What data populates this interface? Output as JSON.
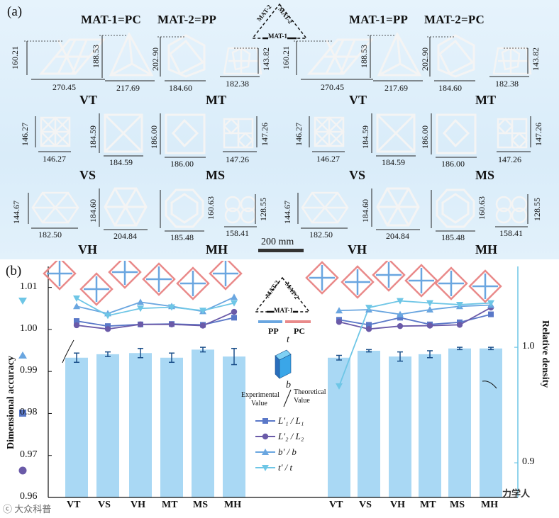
{
  "panel_a": {
    "label": "(a)",
    "headers": [
      "MAT-1=PC",
      "MAT-2=PP",
      "MAT-1=PP",
      "MAT-2=PC"
    ],
    "triangle": {
      "top_left": "MAT-2",
      "top_right": "MAT-2",
      "bottom": "MAT-1"
    },
    "scale_bar": "200 mm",
    "rows": [
      {
        "left_code": "VT",
        "right_code": "MT",
        "dims": [
          {
            "v": "160.21",
            "h": "270.45"
          },
          {
            "v": "188.53",
            "h": "217.69"
          },
          {
            "v": "202.90",
            "h": "184.60"
          },
          {
            "v": "143.82",
            "h": "182.38"
          }
        ]
      },
      {
        "left_code": "VS",
        "right_code": "MS",
        "dims": [
          {
            "v": "146.27",
            "h": "146.27"
          },
          {
            "v": "184.59",
            "h": "184.59"
          },
          {
            "v": "186.00",
            "h": "186.00"
          },
          {
            "v": "147.26",
            "h": "147.26"
          }
        ]
      },
      {
        "left_code": "VH",
        "right_code": "MH",
        "dims": [
          {
            "v": "144.67",
            "h": "182.50"
          },
          {
            "v": "184.60",
            "h": "204.84"
          },
          {
            "v": "160.63",
            "h": "185.48"
          },
          {
            "v": "128.55",
            "h": "158.41"
          }
        ]
      }
    ]
  },
  "panel_b": {
    "label": "(b)",
    "ylabel_left": "Dimensional accuracy",
    "ylabel_right": "Relative density",
    "left_ticks": [
      "1.01",
      "1.00",
      "0.99",
      "0.98",
      "0.97",
      "0.96"
    ],
    "right_ticks": [
      "1.0",
      "0.9"
    ],
    "legend_pp": "PP",
    "legend_pc": "PC",
    "triangle": {
      "top_left": "MAT-2",
      "top_right": "MAT-2",
      "bottom": "MAT-1"
    },
    "cube_t": "t",
    "cube_b": "b",
    "ratio_num_left": "Experimental",
    "ratio_den_left": "Value",
    "ratio_num_right": "Theoretical",
    "ratio_den_right": "Value",
    "legend": [
      {
        "label": "L'₁ / L₁",
        "marker": "square",
        "color": "#5a78c8"
      },
      {
        "label": "L'₂ / L₂",
        "marker": "circle",
        "color": "#6a5aa8"
      },
      {
        "label": "b' / b",
        "marker": "triangle-up",
        "color": "#6aa6e0"
      },
      {
        "label": "t' / t",
        "marker": "triangle-down",
        "color": "#6ec6e6"
      }
    ],
    "watermark_left": "ⓒ 大众科普",
    "watermark_right": "力学人"
  },
  "chart_data": {
    "type": "bar",
    "title": "",
    "xlabel": "",
    "ylabel": "Dimensional accuracy",
    "ylim": [
      0.96,
      1.015
    ],
    "y2label": "Relative density",
    "y2lim": [
      0.87,
      1.07
    ],
    "groups": [
      {
        "name": "MAT-1=PC, MAT-2=PP",
        "categories": [
          "VT",
          "VS",
          "VH",
          "MT",
          "MS",
          "MH"
        ],
        "bars_relative_density": [
          0.991,
          0.994,
          0.995,
          0.991,
          0.998,
          0.992
        ],
        "bar_errors": [
          0.004,
          0.002,
          0.004,
          0.004,
          0.002,
          0.007
        ],
        "series": [
          {
            "name": "L'1/L1",
            "values": [
              1.002,
              1.0008,
              1.0012,
              1.0013,
              1.0011,
              1.0028
            ]
          },
          {
            "name": "L'2/L2",
            "values": [
              1.001,
              1.0001,
              1.0012,
              1.0012,
              1.0009,
              1.0042
            ]
          },
          {
            "name": "b'/b",
            "values": [
              1.0055,
              1.0038,
              1.0065,
              1.0055,
              1.0043,
              1.0077
            ]
          },
          {
            "name": "t'/t",
            "values": [
              1.0074,
              1.0033,
              1.005,
              1.0053,
              1.0045,
              1.0063
            ]
          }
        ]
      },
      {
        "name": "MAT-1=PP, MAT-2=PC",
        "categories": [
          "VT",
          "VS",
          "VH",
          "MT",
          "MS",
          "MH"
        ],
        "bars_relative_density": [
          0.991,
          0.997,
          0.992,
          0.994,
          0.999,
          0.999
        ],
        "bar_errors": [
          0.002,
          0.001,
          0.004,
          0.003,
          0.001,
          0.001
        ],
        "series": [
          {
            "name": "L'1/L1",
            "values": [
              1.0023,
              1.0011,
              1.0028,
              1.0012,
              1.0017,
              1.0036
            ]
          },
          {
            "name": "L'2/L2",
            "values": [
              1.0018,
              1.0001,
              1.0008,
              1.0009,
              1.0011,
              1.0052
            ]
          },
          {
            "name": "b'/b",
            "values": [
              1.0045,
              1.0047,
              1.0036,
              1.0047,
              1.0055,
              1.0058
            ]
          },
          {
            "name": "t'/t",
            "values": [
              0.9865,
              1.0052,
              1.0068,
              1.0063,
              1.0059,
              1.0063
            ]
          }
        ]
      }
    ]
  }
}
